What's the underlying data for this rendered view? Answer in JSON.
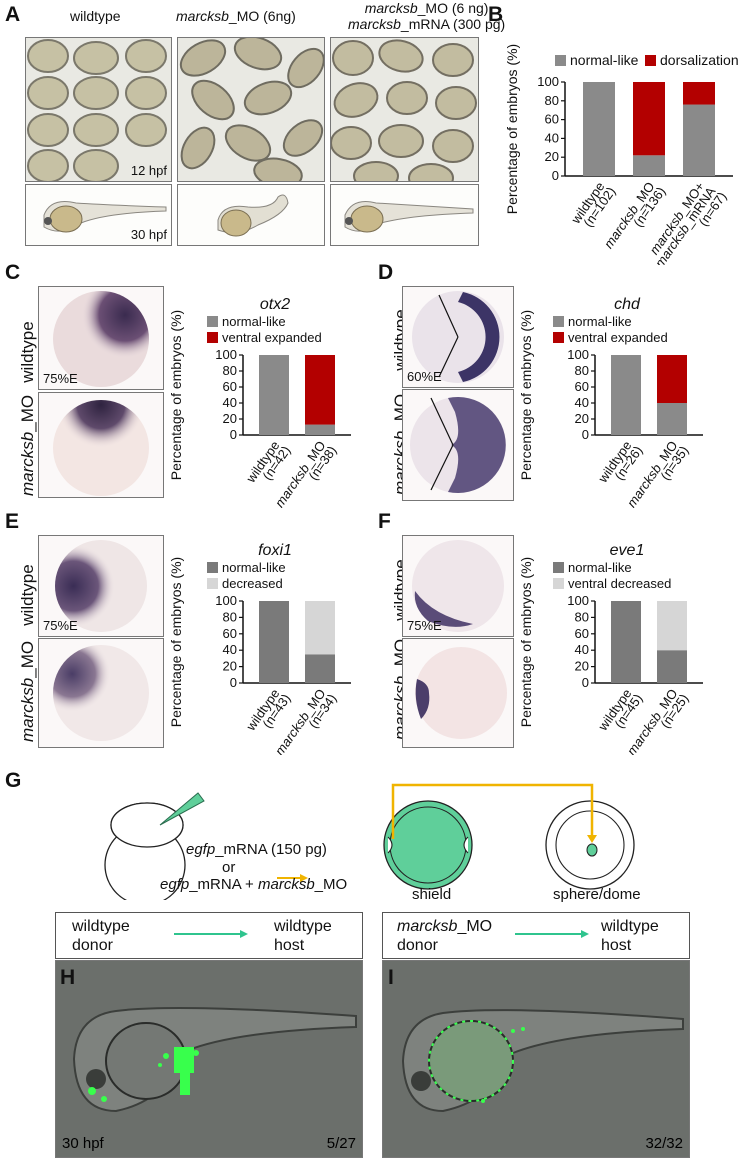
{
  "panels": {
    "A": "A",
    "B": "B",
    "C": "C",
    "D": "D",
    "E": "E",
    "F": "F",
    "G": "G",
    "H": "H",
    "I": "I"
  },
  "panelA": {
    "col1_title": "wildtype",
    "col2_title_italic": "marcksb",
    "col2_title_rest": "_MO (6ng)",
    "col3_line1_italic": "marcksb",
    "col3_line1_rest": "_MO (6 ng)",
    "col3_line2_italic": "marcksb",
    "col3_line2_rest": "_mRNA (300 pg)",
    "stage_top": "12 hpf",
    "stage_bottom": "30 hpf"
  },
  "panelC": {
    "row1": "wildtype",
    "row2_italic": "marcksb",
    "row2_rest": "_MO",
    "stage": "75%E"
  },
  "panelD": {
    "row1": "wildtype",
    "row2_italic": "marcksb",
    "row2_rest": "_MO",
    "stage": "60%E"
  },
  "panelE": {
    "row1": "wildtype",
    "row2_italic": "marcksb",
    "row2_rest": "_MO",
    "stage": "75%E"
  },
  "panelF": {
    "row1": "wildtype",
    "row2_italic": "marcksb",
    "row2_rest": "_MO",
    "stage": "75%E"
  },
  "panelG": {
    "inj1_italic": "egfp",
    "inj1_rest": "_mRNA (150 pg)",
    "or": "or",
    "inj2_a_italic": "egfp",
    "inj2_a_rest": "_mRNA + ",
    "inj2_b_italic": "marcksb",
    "inj2_b_rest": "_MO",
    "shield": "shield",
    "sphere": "sphere/dome"
  },
  "panelH": {
    "donor1": "wildtype",
    "donor2": "donor",
    "host1": "wildtype",
    "host2": "host",
    "stage": "30 hpf",
    "ratio": "5/27"
  },
  "panelI": {
    "donor1_italic": "marcksb",
    "donor1_rest": "_MO",
    "donor2": "donor",
    "host1": "wildtype",
    "host2": "host",
    "ratio": "32/32"
  },
  "colors": {
    "gray": "#8a8a8a",
    "darkgray": "#7a7a7a",
    "red": "#b30000",
    "lightgray": "#d6d6d6",
    "green": "#5fcf9a",
    "arrow": "#f0b400"
  },
  "chart_data": [
    {
      "id": "B",
      "type": "bar",
      "stacked": true,
      "ylabel": "Percentage of embryos (%)",
      "ylim": [
        0,
        100
      ],
      "yticks": [
        0,
        20,
        40,
        60,
        80,
        100
      ],
      "categories": [
        "wildtype\n(n=102)",
        "marcksb_MO\n(n=136)",
        "marcksb_MO+\nmarcksb_mRNA\n(n=67)"
      ],
      "series": [
        {
          "name": "normal-like",
          "color": "#8a8a8a",
          "values": [
            100,
            22,
            76
          ]
        },
        {
          "name": "dorsalization",
          "color": "#b30000",
          "values": [
            0,
            78,
            24
          ]
        }
      ],
      "legend": "top"
    },
    {
      "id": "C",
      "type": "bar",
      "stacked": true,
      "title": "otx2",
      "ylabel": "Percentage of embryos (%)",
      "ylim": [
        0,
        100
      ],
      "yticks": [
        0,
        20,
        40,
        60,
        80,
        100
      ],
      "categories": [
        "wildtype\n(n=42)",
        "marcksb_MO\n(n=38)"
      ],
      "series": [
        {
          "name": "normal-like",
          "color": "#8a8a8a",
          "values": [
            100,
            13
          ]
        },
        {
          "name": "ventral expanded",
          "color": "#b30000",
          "values": [
            0,
            87
          ]
        }
      ],
      "legend": "top"
    },
    {
      "id": "D",
      "type": "bar",
      "stacked": true,
      "title": "chd",
      "ylabel": "Percentage of embryos (%)",
      "ylim": [
        0,
        100
      ],
      "yticks": [
        0,
        20,
        40,
        60,
        80,
        100
      ],
      "categories": [
        "wildtype\n(n=26)",
        "marcksb_MO\n(n=35)"
      ],
      "series": [
        {
          "name": "normal-like",
          "color": "#8a8a8a",
          "values": [
            100,
            40
          ]
        },
        {
          "name": "ventral expanded",
          "color": "#b30000",
          "values": [
            0,
            60
          ]
        }
      ],
      "legend": "top"
    },
    {
      "id": "E",
      "type": "bar",
      "stacked": true,
      "title": "foxi1",
      "ylabel": "Percentage of embryos (%)",
      "ylim": [
        0,
        100
      ],
      "yticks": [
        0,
        20,
        40,
        60,
        80,
        100
      ],
      "categories": [
        "wildtype\n(n=43)",
        "marcksb_MO\n(n=34)"
      ],
      "series": [
        {
          "name": "normal-like",
          "color": "#7a7a7a",
          "values": [
            100,
            35
          ]
        },
        {
          "name": "decreased",
          "color": "#d6d6d6",
          "values": [
            0,
            65
          ]
        }
      ],
      "legend": "top"
    },
    {
      "id": "F",
      "type": "bar",
      "stacked": true,
      "title": "eve1",
      "ylabel": "Percentage of embryos (%)",
      "ylim": [
        0,
        100
      ],
      "yticks": [
        0,
        20,
        40,
        60,
        80,
        100
      ],
      "categories": [
        "wildtype\n(n=45)",
        "marcksb_MO\n(n=25)"
      ],
      "series": [
        {
          "name": "normal-like",
          "color": "#7a7a7a",
          "values": [
            100,
            40
          ]
        },
        {
          "name": "ventral decreased",
          "color": "#d6d6d6",
          "values": [
            0,
            60
          ]
        }
      ],
      "legend": "top"
    }
  ]
}
